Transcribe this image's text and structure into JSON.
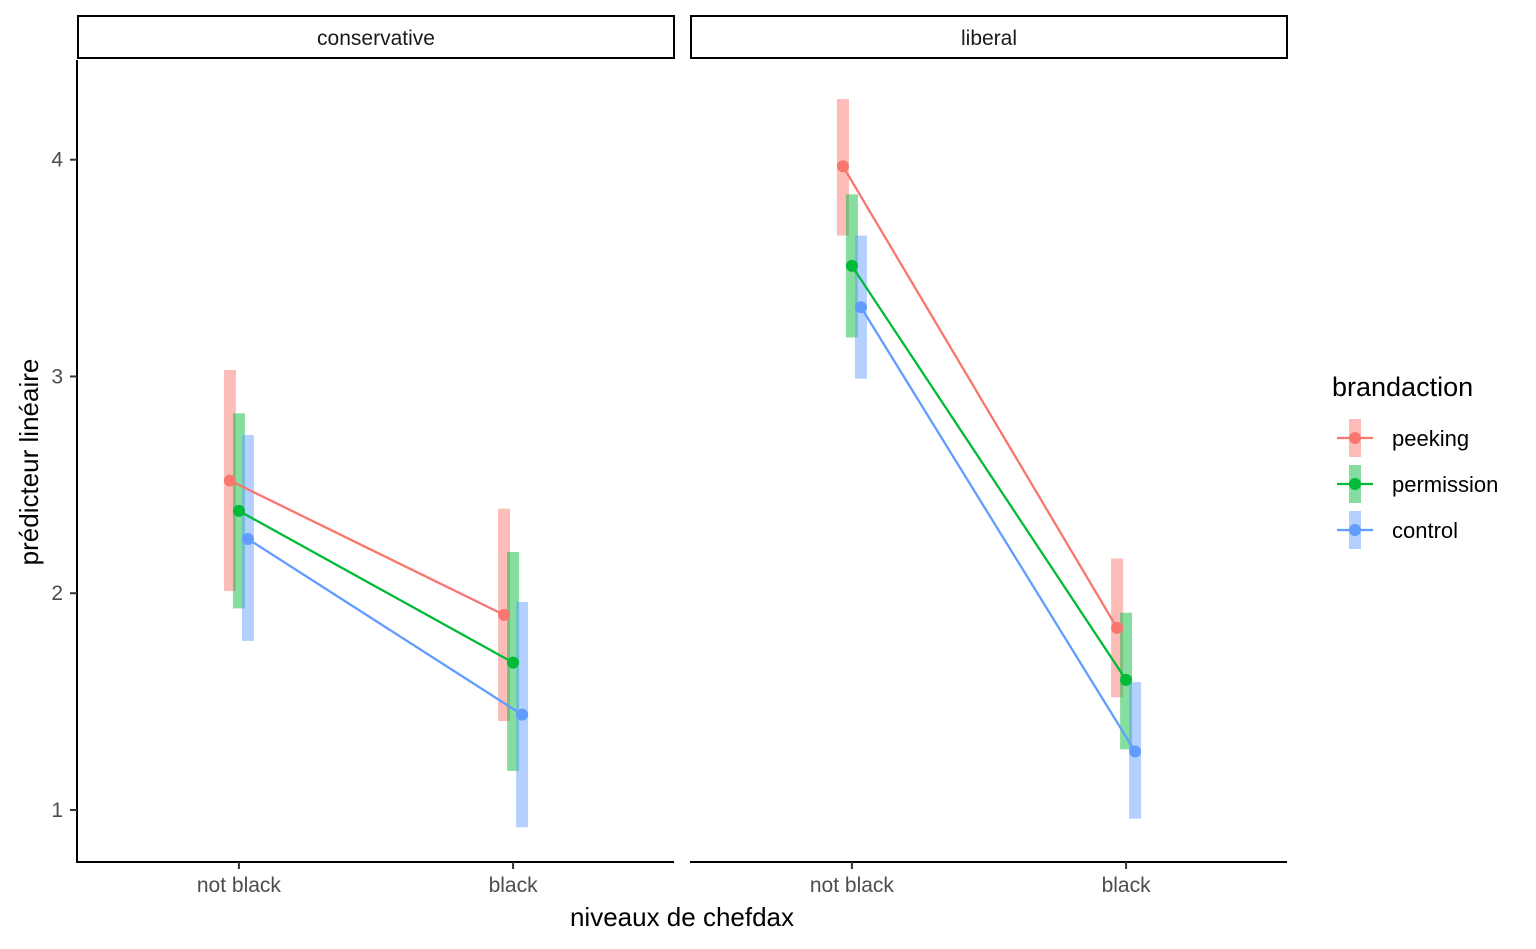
{
  "chart_data": {
    "type": "line",
    "xlabel": "niveaux de chefdax",
    "ylabel": "prédicteur linéaire",
    "categories": [
      "not black",
      "black"
    ],
    "yticks": [
      1,
      2,
      3,
      4
    ],
    "ylim": [
      0.76,
      4.46
    ],
    "grid": false,
    "legend": {
      "title": "brandaction",
      "placement": "right",
      "entries": [
        "peeking",
        "permission",
        "control"
      ]
    },
    "colors": {
      "peeking": "#F8766D",
      "permission": "#00BA38",
      "control": "#619CFF"
    },
    "facets": [
      {
        "label": "conservative",
        "series": [
          {
            "name": "peeking",
            "values": [
              2.52,
              1.9
            ],
            "lower": [
              2.01,
              1.41
            ],
            "upper": [
              3.03,
              2.39
            ]
          },
          {
            "name": "permission",
            "values": [
              2.38,
              1.68
            ],
            "lower": [
              1.93,
              1.18
            ],
            "upper": [
              2.83,
              2.19
            ]
          },
          {
            "name": "control",
            "values": [
              2.25,
              1.44
            ],
            "lower": [
              1.78,
              0.92
            ],
            "upper": [
              2.73,
              1.96
            ]
          }
        ]
      },
      {
        "label": "liberal",
        "series": [
          {
            "name": "peeking",
            "values": [
              3.97,
              1.84
            ],
            "lower": [
              3.65,
              1.52
            ],
            "upper": [
              4.28,
              2.16
            ]
          },
          {
            "name": "permission",
            "values": [
              3.51,
              1.6
            ],
            "lower": [
              3.18,
              1.28
            ],
            "upper": [
              3.84,
              1.91
            ]
          },
          {
            "name": "control",
            "values": [
              3.32,
              1.27
            ],
            "lower": [
              2.99,
              0.96
            ],
            "upper": [
              3.65,
              1.59
            ]
          }
        ]
      }
    ]
  }
}
